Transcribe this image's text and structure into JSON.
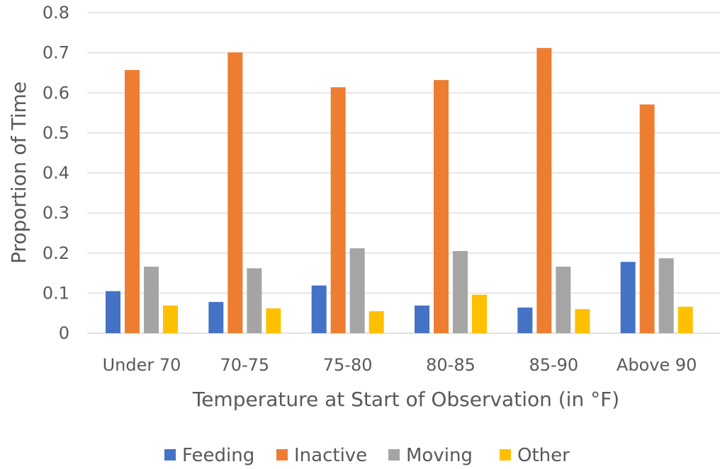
{
  "chart_data": {
    "type": "bar",
    "title": "",
    "xlabel": "Temperature at Start of Observation (in °F)",
    "ylabel": "Proportion of Time",
    "ylim": [
      0,
      0.8
    ],
    "yticks": [
      "0",
      "0.1",
      "0.2",
      "0.3",
      "0.4",
      "0.5",
      "0.6",
      "0.7",
      "0.8"
    ],
    "grid": true,
    "legend_position": "bottom",
    "categories": [
      "Under 70",
      "70-75",
      "75-80",
      "80-85",
      "85-90",
      "Above 90"
    ],
    "series": [
      {
        "name": "Feeding",
        "color": "#4472C4",
        "values": [
          0.105,
          0.078,
          0.119,
          0.069,
          0.064,
          0.178
        ]
      },
      {
        "name": "Inactive",
        "color": "#ED7D31",
        "values": [
          0.657,
          0.701,
          0.614,
          0.632,
          0.712,
          0.571
        ]
      },
      {
        "name": "Moving",
        "color": "#A5A5A5",
        "values": [
          0.166,
          0.162,
          0.212,
          0.205,
          0.166,
          0.187
        ]
      },
      {
        "name": "Other",
        "color": "#FFC000",
        "values": [
          0.069,
          0.062,
          0.055,
          0.096,
          0.06,
          0.066
        ]
      }
    ]
  }
}
